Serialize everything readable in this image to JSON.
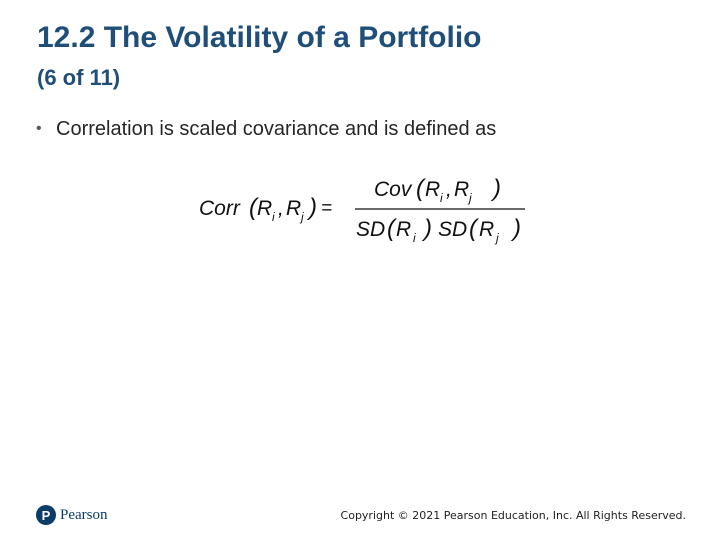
{
  "slide": {
    "title": "12.2 The Volatility of a Portfolio",
    "subtitle": "(6 of 11)",
    "bullet": "Correlation is scaled covariance and is defined as"
  },
  "formula": {
    "lhs": "Corr",
    "numerator_fn": "Cov",
    "denominator_fn": "SD",
    "var": "R",
    "sub_i": "i",
    "sub_j": "j",
    "equals": "="
  },
  "footer": {
    "logo_mark": "P",
    "logo_word": "Pearson",
    "copyright": "Copyright © 2021 Pearson Education, Inc. All Rights Reserved."
  },
  "colors": {
    "title": "#1f4e79",
    "brand": "#0b3d66"
  }
}
